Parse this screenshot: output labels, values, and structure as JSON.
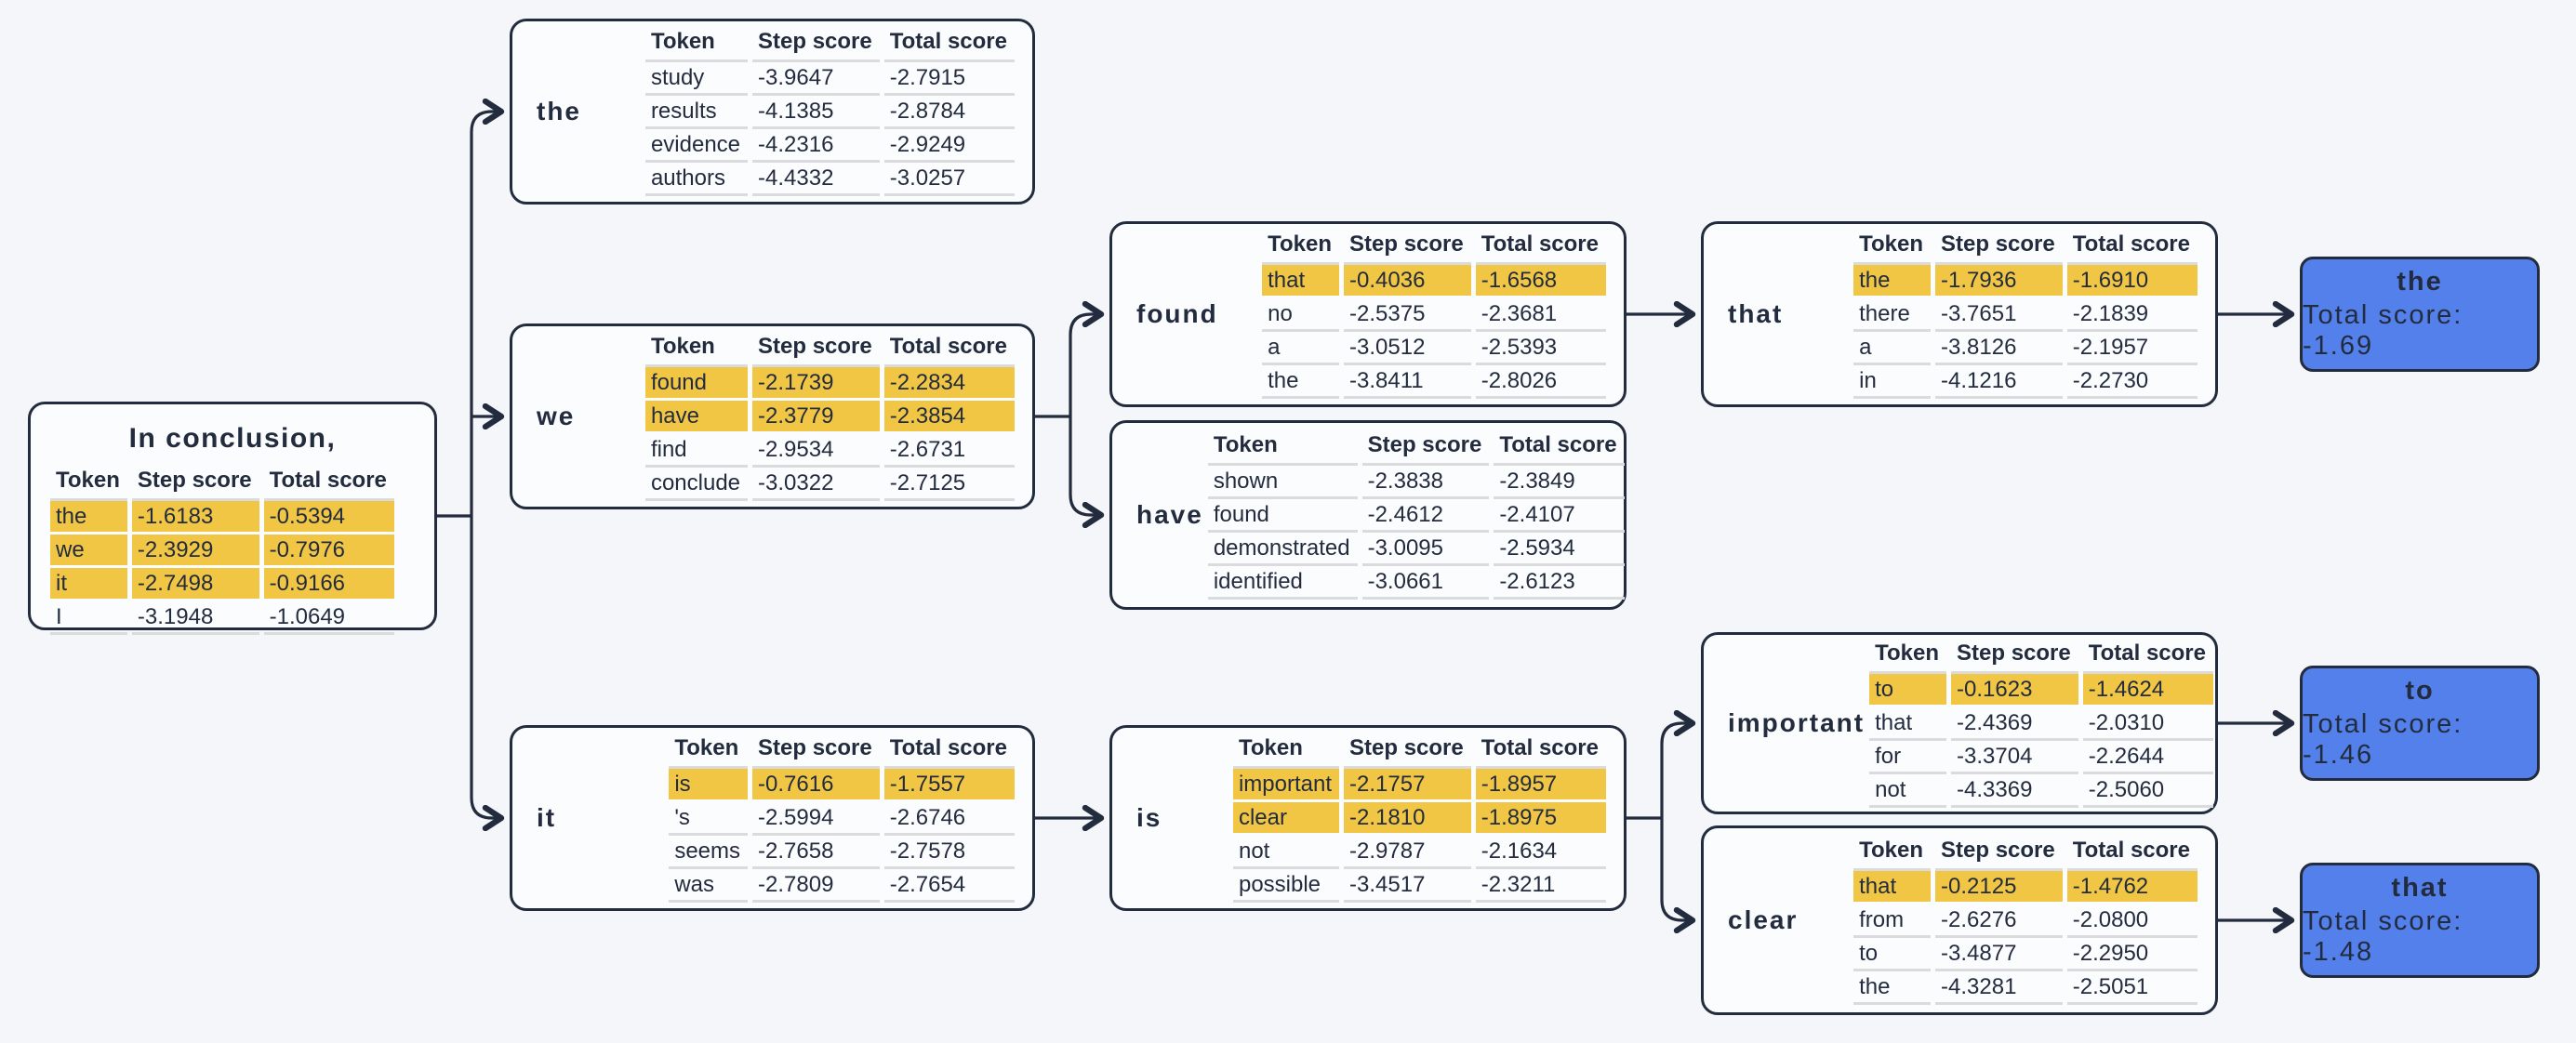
{
  "colors": {
    "background": "#f5f6f9",
    "node_bg": "#fbfcfe",
    "node_border": "#232c3e",
    "highlight": "#f1c645",
    "terminal_bg": "#5380ea",
    "text": "#232c3e",
    "row_line": "#dadbdd",
    "connector": "#232c3e"
  },
  "table_headers": [
    "Token",
    "Step score",
    "Total score"
  ],
  "root": {
    "title": "In conclusion,",
    "rows": [
      [
        "the",
        "-1.6183",
        "-0.5394",
        true
      ],
      [
        "we",
        "-2.3929",
        "-0.7976",
        true
      ],
      [
        "it",
        "-2.7498",
        "-0.9166",
        true
      ],
      [
        "I",
        "-3.1948",
        "-1.0649",
        false
      ]
    ]
  },
  "nodes": {
    "the": {
      "label": "the",
      "rows": [
        [
          "study",
          "-3.9647",
          "-2.7915",
          false
        ],
        [
          "results",
          "-4.1385",
          "-2.8784",
          false
        ],
        [
          "evidence",
          "-4.2316",
          "-2.9249",
          false
        ],
        [
          "authors",
          "-4.4332",
          "-3.0257",
          false
        ]
      ]
    },
    "we": {
      "label": "we",
      "rows": [
        [
          "found",
          "-2.1739",
          "-2.2834",
          true
        ],
        [
          "have",
          "-2.3779",
          "-2.3854",
          true
        ],
        [
          "find",
          "-2.9534",
          "-2.6731",
          false
        ],
        [
          "conclude",
          "-3.0322",
          "-2.7125",
          false
        ]
      ]
    },
    "it": {
      "label": "it",
      "rows": [
        [
          "is",
          "-0.7616",
          "-1.7557",
          true
        ],
        [
          "'s",
          "-2.5994",
          "-2.6746",
          false
        ],
        [
          "seems",
          "-2.7658",
          "-2.7578",
          false
        ],
        [
          "was",
          "-2.7809",
          "-2.7654",
          false
        ]
      ]
    },
    "found": {
      "label": "found",
      "rows": [
        [
          "that",
          "-0.4036",
          "-1.6568",
          true
        ],
        [
          "no",
          "-2.5375",
          "-2.3681",
          false
        ],
        [
          "a",
          "-3.0512",
          "-2.5393",
          false
        ],
        [
          "the",
          "-3.8411",
          "-2.8026",
          false
        ]
      ]
    },
    "have": {
      "label": "have",
      "rows": [
        [
          "shown",
          "-2.3838",
          "-2.3849",
          false
        ],
        [
          "found",
          "-2.4612",
          "-2.4107",
          false
        ],
        [
          "demonstrated",
          "-3.0095",
          "-2.5934",
          false
        ],
        [
          "identified",
          "-3.0661",
          "-2.6123",
          false
        ]
      ]
    },
    "is": {
      "label": "is",
      "rows": [
        [
          "important",
          "-2.1757",
          "-1.8957",
          true
        ],
        [
          "clear",
          "-2.1810",
          "-1.8975",
          true
        ],
        [
          "not",
          "-2.9787",
          "-2.1634",
          false
        ],
        [
          "possible",
          "-3.4517",
          "-2.3211",
          false
        ]
      ]
    },
    "that": {
      "label": "that",
      "rows": [
        [
          "the",
          "-1.7936",
          "-1.6910",
          true
        ],
        [
          "there",
          "-3.7651",
          "-2.1839",
          false
        ],
        [
          "a",
          "-3.8126",
          "-2.1957",
          false
        ],
        [
          "in",
          "-4.1216",
          "-2.2730",
          false
        ]
      ]
    },
    "important": {
      "label": "important",
      "rows": [
        [
          "to",
          "-0.1623",
          "-1.4624",
          true
        ],
        [
          "that",
          "-2.4369",
          "-2.0310",
          false
        ],
        [
          "for",
          "-3.3704",
          "-2.2644",
          false
        ],
        [
          "not",
          "-4.3369",
          "-2.5060",
          false
        ]
      ]
    },
    "clear": {
      "label": "clear",
      "rows": [
        [
          "that",
          "-0.2125",
          "-1.4762",
          true
        ],
        [
          "from",
          "-2.6276",
          "-2.0800",
          false
        ],
        [
          "to",
          "-3.4877",
          "-2.2950",
          false
        ],
        [
          "the",
          "-4.3281",
          "-2.5051",
          false
        ]
      ]
    }
  },
  "terminals": {
    "the": {
      "label": "the",
      "score": "Total score: -1.69"
    },
    "to": {
      "label": "to",
      "score": "Total score: -1.46"
    },
    "that": {
      "label": "that",
      "score": "Total score: -1.48"
    }
  }
}
